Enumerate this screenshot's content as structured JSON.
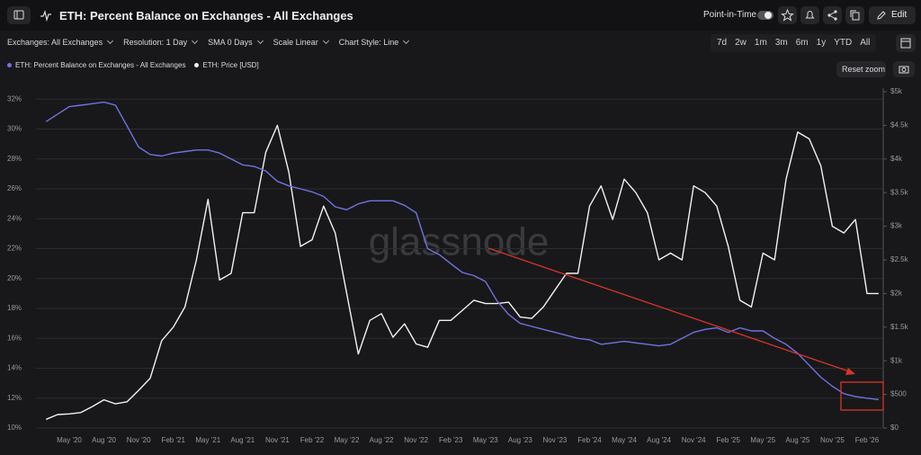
{
  "toolbar": {
    "title": "ETH: Percent Balance on Exchanges - All Exchanges",
    "point_in_time": "Point-in-Time",
    "edit": "Edit",
    "filters": [
      "Exchanges: All Exchanges",
      "Resolution: 1 Day",
      "SMA 0 Days",
      "Scale Linear",
      "Chart Style: Line"
    ],
    "ranges": [
      "7d",
      "2w",
      "1m",
      "3m",
      "6m",
      "1y",
      "YTD",
      "All"
    ],
    "reset_zoom": "Reset zoom"
  },
  "chart_data": {
    "type": "line",
    "watermark": "glassnode",
    "categories": [
      null,
      null,
      "May '20",
      null,
      null,
      "Aug '20",
      null,
      null,
      "Nov '20",
      null,
      null,
      "Feb '21",
      null,
      null,
      "May '21",
      null,
      null,
      "Aug '21",
      null,
      null,
      "Nov '21",
      null,
      null,
      "Feb '22",
      null,
      null,
      "May '22",
      null,
      null,
      "Aug '22",
      null,
      null,
      "Nov '22",
      null,
      null,
      "Feb '23",
      null,
      null,
      "May '23",
      null,
      null,
      "Aug '23",
      null,
      null,
      "Nov '23",
      null,
      null,
      "Feb '24",
      null,
      null,
      "May '24",
      null,
      null,
      "Aug '24",
      null,
      null,
      "Nov '24",
      null,
      null,
      "Feb '25",
      null,
      null,
      "May '25",
      null,
      null,
      "Aug '25",
      null,
      null,
      "Nov '25",
      null,
      null,
      "Feb '26",
      null
    ],
    "series": [
      {
        "name": "ETH: Percent Balance on Exchanges - All Exchanges",
        "color": "#6f73e0",
        "axis": "y",
        "values": [
          30.5,
          31.0,
          31.5,
          31.6,
          31.7,
          31.8,
          31.6,
          30.2,
          28.8,
          28.3,
          28.2,
          28.4,
          28.5,
          28.6,
          28.6,
          28.4,
          28.0,
          27.6,
          27.5,
          27.2,
          26.5,
          26.2,
          26.0,
          25.8,
          25.5,
          24.8,
          24.6,
          25.0,
          25.2,
          25.2,
          25.2,
          24.9,
          24.4,
          22.0,
          21.6,
          21.0,
          20.4,
          20.2,
          19.8,
          18.5,
          17.6,
          17.0,
          16.8,
          16.6,
          16.4,
          16.2,
          16.0,
          15.9,
          15.6,
          15.7,
          15.8,
          15.7,
          15.6,
          15.5,
          15.6,
          16.0,
          16.4,
          16.6,
          16.7,
          16.4,
          16.7,
          16.5,
          16.5,
          16.0,
          15.6,
          15.0,
          14.2,
          13.4,
          12.8,
          12.3,
          12.1,
          12.0,
          11.9
        ]
      },
      {
        "name": "ETH: Price [USD]",
        "color": "#f2f2f2",
        "axis": "y2",
        "values": [
          130,
          200,
          210,
          230,
          320,
          420,
          360,
          390,
          560,
          740,
          1300,
          1500,
          1800,
          2500,
          3400,
          2200,
          2300,
          3200,
          3200,
          4100,
          4500,
          3800,
          2700,
          2800,
          3300,
          2900,
          2000,
          1100,
          1600,
          1700,
          1350,
          1550,
          1250,
          1200,
          1600,
          1600,
          1750,
          1900,
          1850,
          1850,
          1870,
          1650,
          1630,
          1800,
          2050,
          2300,
          2300,
          3300,
          3600,
          3100,
          3700,
          3500,
          3200,
          2500,
          2600,
          2500,
          3600,
          3500,
          3300,
          2700,
          1900,
          1800,
          2600,
          2500,
          3700,
          4400,
          4300,
          3900,
          3000,
          2900,
          3100,
          2000,
          2000
        ]
      }
    ],
    "ylim": [
      10,
      32.5
    ],
    "yticks": [
      {
        "value": 10,
        "label": "10%"
      },
      {
        "value": 12,
        "label": "12%"
      },
      {
        "value": 14,
        "label": "14%"
      },
      {
        "value": 16,
        "label": "16%"
      },
      {
        "value": 18,
        "label": "18%"
      },
      {
        "value": 20,
        "label": "20%"
      },
      {
        "value": 22,
        "label": "22%"
      },
      {
        "value": 24,
        "label": "24%"
      },
      {
        "value": 26,
        "label": "26%"
      },
      {
        "value": 28,
        "label": "28%"
      },
      {
        "value": 30,
        "label": "30%"
      },
      {
        "value": 32,
        "label": "32%"
      }
    ],
    "y2lim": [
      0,
      5000
    ],
    "y2ticks": [
      {
        "value": 0,
        "label": "$0"
      },
      {
        "value": 500,
        "label": "$500"
      },
      {
        "value": 1000,
        "label": "$1k"
      },
      {
        "value": 1500,
        "label": "$1.5k"
      },
      {
        "value": 2000,
        "label": "$2k"
      },
      {
        "value": 2500,
        "label": "$2.5k"
      },
      {
        "value": 3000,
        "label": "$3k"
      },
      {
        "value": 3500,
        "label": "$3.5k"
      },
      {
        "value": 4000,
        "label": "$4k"
      },
      {
        "value": 4500,
        "label": "$4.5k"
      },
      {
        "value": 5000,
        "label": "$5k"
      }
    ],
    "grid": true
  }
}
